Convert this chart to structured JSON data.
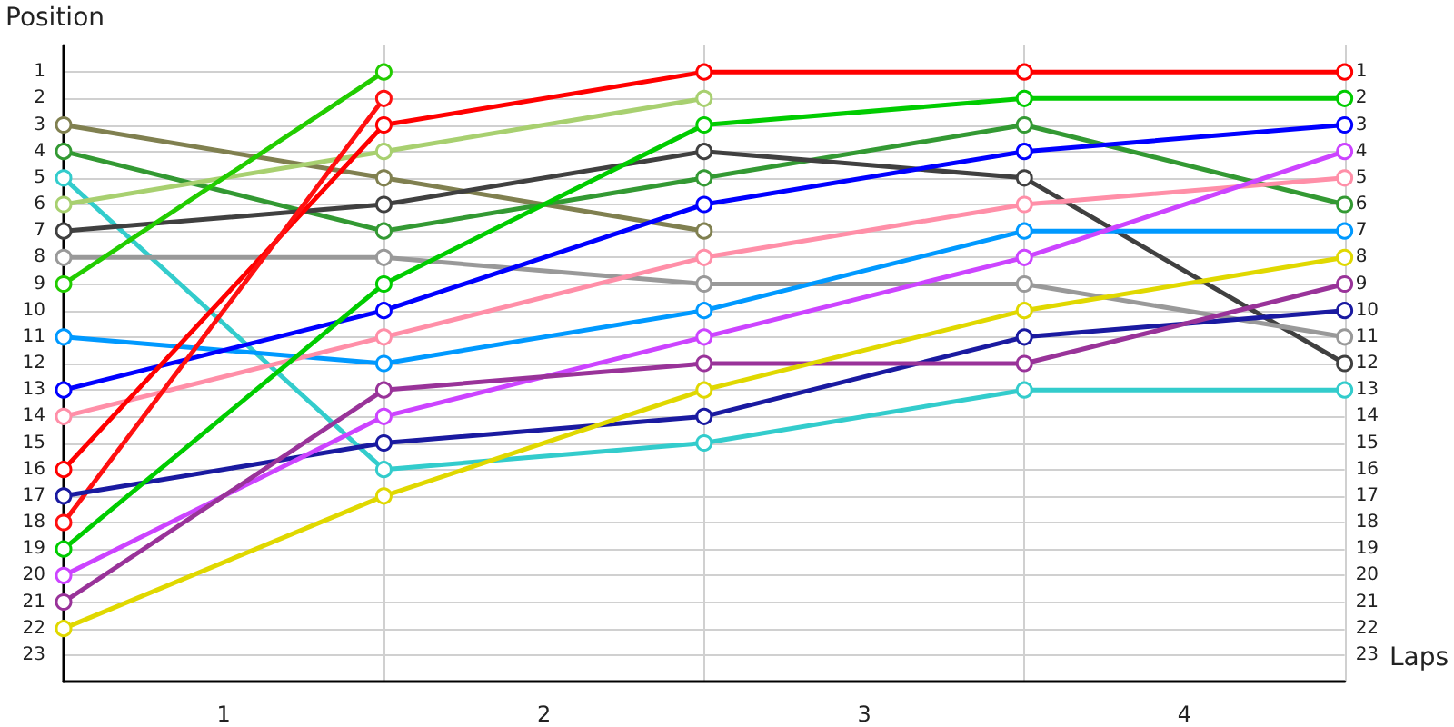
{
  "chart_data": {
    "type": "line",
    "xlabel": "Laps",
    "ylabel": "Position",
    "x": [
      0,
      1,
      2,
      3,
      4
    ],
    "xlim": [
      0,
      4
    ],
    "xticks": [
      {
        "value": 0.5,
        "label": "1"
      },
      {
        "value": 1,
        "label": null
      },
      {
        "value": 1.5,
        "label": "2"
      },
      {
        "value": 2,
        "label": null
      },
      {
        "value": 2.5,
        "label": "3"
      },
      {
        "value": 3,
        "label": null
      },
      {
        "value": 3.5,
        "label": "4"
      },
      {
        "value": 4,
        "label": null
      }
    ],
    "ylim": [
      24,
      0
    ],
    "yticks": [
      1,
      2,
      3,
      4,
      5,
      6,
      7,
      8,
      9,
      10,
      11,
      12,
      13,
      14,
      15,
      16,
      17,
      18,
      19,
      20,
      21,
      22,
      23
    ],
    "y2lim": [
      24,
      0
    ],
    "y2ticks": [
      1,
      2,
      3,
      4,
      5,
      6,
      7,
      8,
      9,
      10,
      11,
      12,
      13,
      14,
      15,
      16,
      17,
      18,
      19,
      20,
      21,
      22,
      23
    ],
    "grid": true,
    "marker": "circle",
    "line_style": "solid",
    "series": [
      {
        "color": "#808050",
        "values": [
          3,
          5,
          7,
          null,
          null
        ]
      },
      {
        "color": "#339933",
        "values": [
          4,
          7,
          5,
          3,
          6
        ]
      },
      {
        "color": "#33cccc",
        "values": [
          5,
          16,
          15,
          13,
          13
        ]
      },
      {
        "color": "#a8d070",
        "values": [
          6,
          4,
          2,
          null,
          null
        ]
      },
      {
        "color": "#404040",
        "values": [
          7,
          6,
          4,
          5,
          12
        ]
      },
      {
        "color": "#999999",
        "values": [
          8,
          8,
          9,
          9,
          11
        ]
      },
      {
        "color": "#22cc00",
        "values": [
          9,
          1,
          null,
          null,
          null
        ]
      },
      {
        "color": "#0099ff",
        "values": [
          11,
          12,
          10,
          7,
          7
        ]
      },
      {
        "color": "#0000ff",
        "values": [
          13,
          10,
          6,
          4,
          3
        ]
      },
      {
        "color": "#ff8fa8",
        "values": [
          14,
          11,
          8,
          6,
          5
        ]
      },
      {
        "color": "#ff0000",
        "values": [
          16,
          3,
          1,
          1,
          1
        ]
      },
      {
        "color": "#ff1010",
        "values": [
          18,
          2,
          null,
          null,
          null
        ]
      },
      {
        "color": "#1a1aa0",
        "values": [
          17,
          15,
          14,
          11,
          10
        ]
      },
      {
        "color": "#00cc00",
        "values": [
          19,
          9,
          3,
          2,
          2
        ]
      },
      {
        "color": "#cc44ff",
        "values": [
          20,
          14,
          11,
          8,
          4
        ]
      },
      {
        "color": "#993399",
        "values": [
          21,
          13,
          12,
          12,
          9
        ]
      },
      {
        "color": "#e0d800",
        "values": [
          22,
          17,
          13,
          10,
          8
        ]
      }
    ]
  }
}
